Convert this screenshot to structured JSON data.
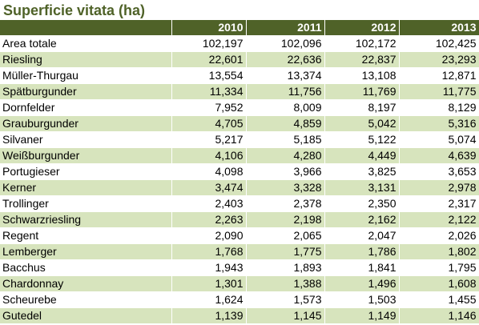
{
  "title": "Superficie vitata (ha)",
  "columns": [
    "",
    "2010",
    "2011",
    "2012",
    "2013"
  ],
  "rows": [
    {
      "name": "Area totale",
      "values": [
        "102,197",
        "102,096",
        "102,172",
        "102,425"
      ]
    },
    {
      "name": "Riesling",
      "values": [
        "22,601",
        "22,636",
        "22,837",
        "23,293"
      ]
    },
    {
      "name": "Müller-Thurgau",
      "values": [
        "13,554",
        "13,374",
        "13,108",
        "12,871"
      ]
    },
    {
      "name": "Spätburgunder",
      "values": [
        "11,334",
        "11,756",
        "11,769",
        "11,775"
      ]
    },
    {
      "name": "Dornfelder",
      "values": [
        "7,952",
        "8,009",
        "8,197",
        "8,129"
      ]
    },
    {
      "name": "Grauburgunder",
      "values": [
        "4,705",
        "4,859",
        "5,042",
        "5,316"
      ]
    },
    {
      "name": "Silvaner",
      "values": [
        "5,217",
        "5,185",
        "5,122",
        "5,074"
      ]
    },
    {
      "name": "Weißburgunder",
      "values": [
        "4,106",
        "4,280",
        "4,449",
        "4,639"
      ]
    },
    {
      "name": "Portugieser",
      "values": [
        "4,098",
        "3,966",
        "3,825",
        "3,653"
      ]
    },
    {
      "name": "Kerner",
      "values": [
        "3,474",
        "3,328",
        "3,131",
        "2,978"
      ]
    },
    {
      "name": "Trollinger",
      "values": [
        "2,403",
        "2,378",
        "2,350",
        "2,317"
      ]
    },
    {
      "name": "Schwarzriesling",
      "values": [
        "2,263",
        "2,198",
        "2,162",
        "2,122"
      ]
    },
    {
      "name": "Regent",
      "values": [
        "2,090",
        "2,065",
        "2,047",
        "2,026"
      ]
    },
    {
      "name": "Lemberger",
      "values": [
        "1,768",
        "1,775",
        "1,786",
        "1,802"
      ]
    },
    {
      "name": "Bacchus",
      "values": [
        "1,943",
        "1,893",
        "1,841",
        "1,795"
      ]
    },
    {
      "name": "Chardonnay",
      "values": [
        "1,301",
        "1,388",
        "1,496",
        "1,608"
      ]
    },
    {
      "name": "Scheurebe",
      "values": [
        "1,624",
        "1,573",
        "1,503",
        "1,455"
      ]
    },
    {
      "name": "Gutedel",
      "values": [
        "1,139",
        "1,145",
        "1,149",
        "1,146"
      ]
    }
  ],
  "colors": {
    "header_bg": "#4f6228",
    "header_text": "#ffffff",
    "title_text": "#4f6228",
    "band_light": "#d7e4bd",
    "band_white": "#ffffff"
  }
}
